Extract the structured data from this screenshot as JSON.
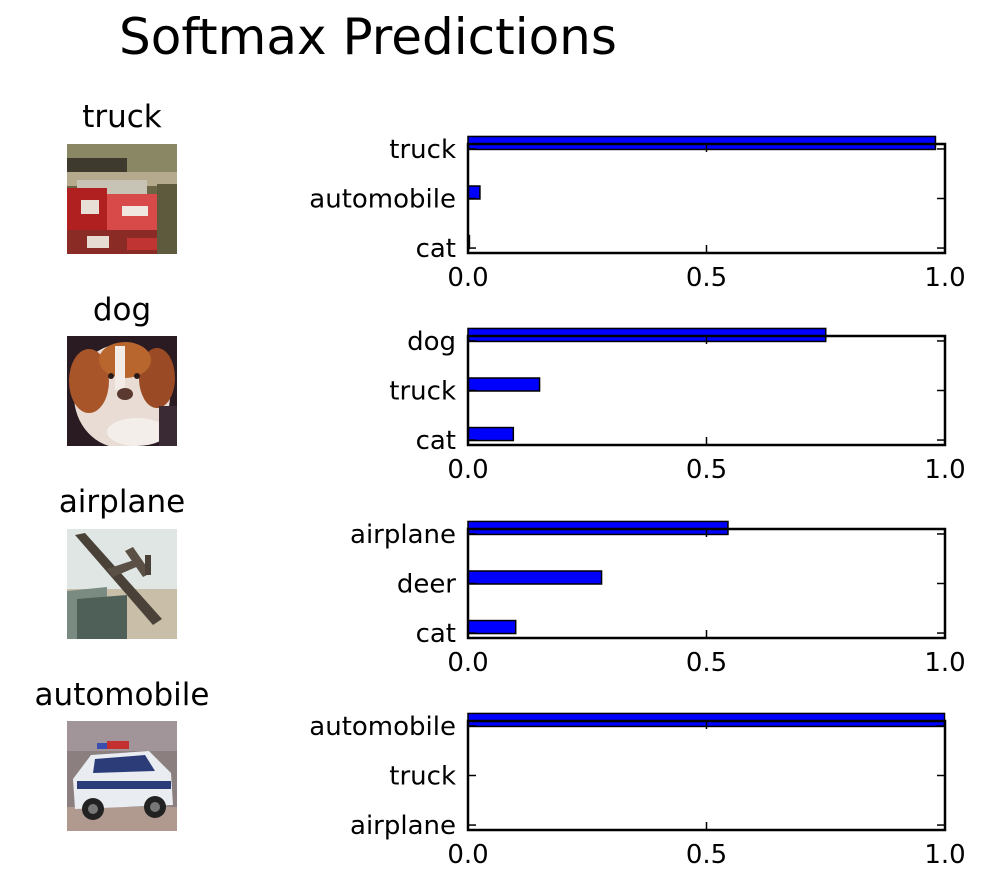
{
  "figure": {
    "title": "Softmax Predictions"
  },
  "colors": {
    "bar_fill": "#0000ff",
    "bar_edge": "#000000",
    "axes_edge": "#000000"
  },
  "images": [
    {
      "label": "truck",
      "content": "red fire truck photo"
    },
    {
      "label": "dog",
      "content": "brown and white puppy photo"
    },
    {
      "label": "airplane",
      "content": "airplane model photo"
    },
    {
      "label": "automobile",
      "content": "police car photo"
    }
  ],
  "chart_data": [
    {
      "type": "bar",
      "orientation": "horizontal",
      "categories": [
        "truck",
        "automobile",
        "cat"
      ],
      "values": [
        0.98,
        0.025,
        0.003
      ],
      "xlim": [
        0.0,
        1.0
      ],
      "xticks": [
        "0.0",
        "0.5",
        "1.0"
      ]
    },
    {
      "type": "bar",
      "orientation": "horizontal",
      "categories": [
        "dog",
        "truck",
        "cat"
      ],
      "values": [
        0.75,
        0.15,
        0.095
      ],
      "xlim": [
        0.0,
        1.0
      ],
      "xticks": [
        "0.0",
        "0.5",
        "1.0"
      ]
    },
    {
      "type": "bar",
      "orientation": "horizontal",
      "categories": [
        "airplane",
        "deer",
        "cat"
      ],
      "values": [
        0.545,
        0.28,
        0.1
      ],
      "xlim": [
        0.0,
        1.0
      ],
      "xticks": [
        "0.0",
        "0.5",
        "1.0"
      ]
    },
    {
      "type": "bar",
      "orientation": "horizontal",
      "categories": [
        "automobile",
        "truck",
        "airplane"
      ],
      "values": [
        0.999,
        0.0005,
        0.0002
      ],
      "xlim": [
        0.0,
        1.0
      ],
      "xticks": [
        "0.0",
        "0.5",
        "1.0"
      ]
    }
  ]
}
